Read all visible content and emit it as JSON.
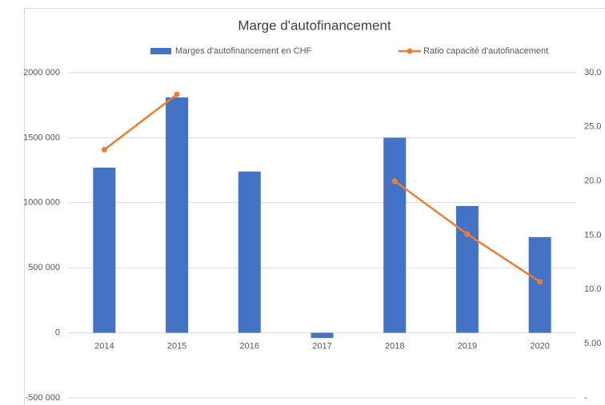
{
  "chart_data": {
    "type": "bar-line",
    "title": "Marge d'autofinancement",
    "categories": [
      "2014",
      "2015",
      "2016",
      "2017",
      "2018",
      "2019",
      "2020"
    ],
    "series": [
      {
        "name": "Marges d'autofinancement en CHF",
        "color": "#4472c4",
        "type": "bar",
        "values": [
          1270000,
          1810000,
          1240000,
          -40000,
          1500000,
          975000,
          736000
        ]
      },
      {
        "name": "Ratio capacité d'autofinacement",
        "color": "#ed7d31",
        "type": "line",
        "axis": "y2",
        "values": [
          22.9,
          28.0,
          null,
          null,
          20.0,
          15.1,
          10.7
        ]
      }
    ],
    "ylim": [
      -500000,
      2000000
    ],
    "yticks": [
      {
        "value": -500000,
        "label": "-500 000"
      },
      0,
      {
        "value": 500000,
        "label": "500 000"
      },
      {
        "value": 1000000,
        "label": "1000 000"
      },
      {
        "value": 1500000,
        "label": "1500 000"
      },
      {
        "value": 2000000,
        "label": "2000 000"
      }
    ],
    "y2lim": [
      0,
      30
    ],
    "y2ticks": [
      {
        "value": 0,
        "label": "-"
      },
      {
        "value": 5,
        "label": "5.00"
      },
      {
        "value": 10,
        "label": "10.0"
      },
      {
        "value": 15,
        "label": "15.0"
      },
      {
        "value": 20,
        "label": "20.0"
      },
      {
        "value": 25,
        "label": "25.0"
      },
      {
        "value": 30,
        "label": "30.0"
      }
    ],
    "grid": true,
    "legend": "top"
  }
}
